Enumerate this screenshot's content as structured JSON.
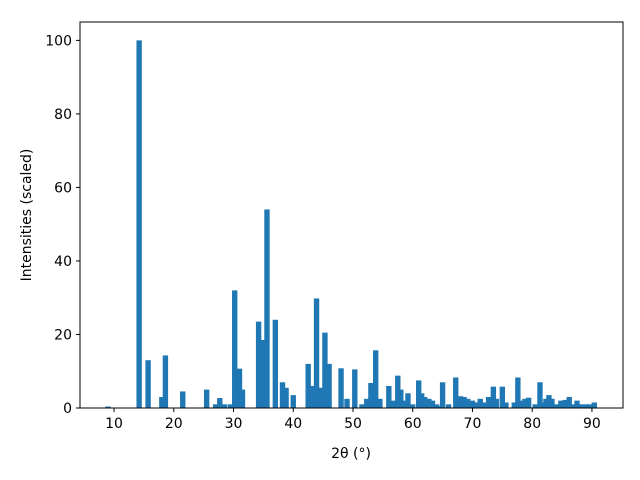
{
  "chart_data": {
    "type": "bar",
    "xlabel": "2θ (°)",
    "ylabel": "Intensities (scaled)",
    "color": "#1f77b4",
    "x": [
      9,
      14.2,
      15.7,
      18,
      18.6,
      21.5,
      25.5,
      27,
      27.7,
      28.5,
      29.5,
      30.2,
      31,
      31.5,
      34.2,
      35,
      35.6,
      37,
      38.2,
      38.8,
      40,
      42.5,
      43.2,
      43.9,
      44.5,
      45.3,
      46,
      48,
      49,
      50.3,
      51.5,
      52.3,
      53,
      53.8,
      54.5,
      56,
      56.8,
      57.5,
      58,
      58.5,
      59.2,
      60,
      61,
      61.5,
      62,
      62.7,
      63.3,
      64,
      64.5,
      65,
      66,
      67.2,
      68,
      68.6,
      69.2,
      70,
      70.6,
      71.3,
      72,
      72.7,
      73.5,
      74,
      75,
      75.6,
      77,
      77.6,
      78.2,
      78.8,
      79.4,
      80.5,
      81.3,
      81.8,
      82.3,
      82.8,
      83.3,
      84,
      84.8,
      85.5,
      86.2,
      87,
      87.5,
      88.2,
      89,
      89.7,
      90.4
    ],
    "values": [
      0.4,
      100,
      13,
      3,
      14.3,
      4.5,
      5,
      1,
      2.7,
      1,
      1,
      32,
      10.7,
      5,
      23.5,
      18.5,
      54,
      24,
      7,
      5.5,
      3.5,
      12,
      6,
      29.8,
      5.5,
      20.5,
      12,
      10.8,
      2.5,
      10.5,
      1,
      2.5,
      6.8,
      15.7,
      2.5,
      6,
      2,
      8.8,
      5,
      2,
      4,
      1,
      7.5,
      4,
      3,
      2.5,
      2,
      1,
      0.5,
      7,
      1,
      8.3,
      3.2,
      3,
      2.5,
      2,
      1.5,
      2.5,
      1.5,
      3,
      5.8,
      2.5,
      5.8,
      1.5,
      1.5,
      8.3,
      2,
      2.5,
      2.8,
      1,
      7,
      1.5,
      2.5,
      3.5,
      2.5,
      1,
      2,
      2.2,
      3,
      1,
      2,
      1,
      1,
      1,
      1.5
    ],
    "xlim": [
      4.3,
      95.2
    ],
    "ylim": [
      0,
      105
    ],
    "xticks": [
      10,
      20,
      30,
      40,
      50,
      60,
      70,
      80,
      90
    ],
    "yticks": [
      0,
      20,
      40,
      60,
      80,
      100
    ]
  }
}
